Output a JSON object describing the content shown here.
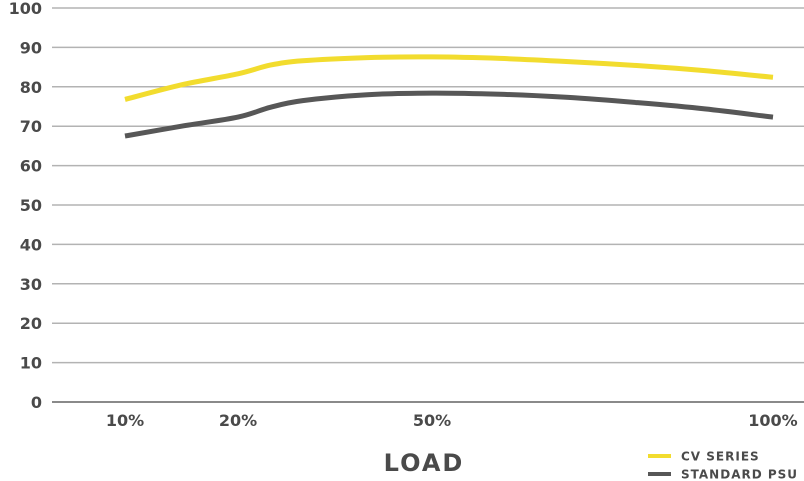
{
  "chart_data": {
    "type": "line",
    "title": "",
    "xlabel": "LOAD",
    "ylabel": "",
    "ylim": [
      0,
      100
    ],
    "yticks": [
      0,
      10,
      20,
      30,
      40,
      50,
      60,
      70,
      80,
      90,
      100
    ],
    "x_ticks": [
      "10%",
      "20%",
      "50%",
      "100%"
    ],
    "x": [
      10,
      15,
      20,
      25,
      30,
      40,
      50,
      60,
      70,
      80,
      90,
      100
    ],
    "grid": true,
    "legend_position": "bottom-right",
    "series": [
      {
        "name": "CV SERIES",
        "color": "#f2dc2e",
        "values": [
          76.8,
          80.5,
          83.3,
          85.5,
          86.6,
          87.4,
          87.6,
          87.2,
          86.4,
          85.4,
          84.1,
          82.4
        ]
      },
      {
        "name": "STANDARD PSU",
        "color": "#575757",
        "values": [
          67.5,
          70,
          72.3,
          74.8,
          76.5,
          78,
          78.4,
          78.1,
          77.3,
          76,
          74.4,
          72.3
        ]
      }
    ]
  }
}
